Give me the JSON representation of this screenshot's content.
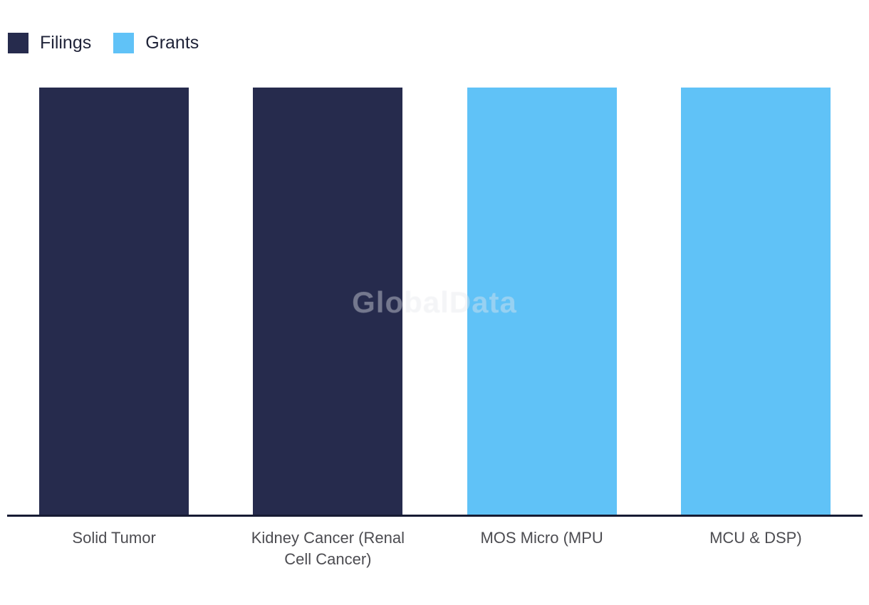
{
  "watermark": {
    "text": "GlobalData"
  },
  "colors": {
    "background": "#FFFFFF",
    "filings_bar": "#262B4D",
    "grants_bar": "#60C2F7",
    "axis_line": "#171B33",
    "axis_label_text": "#4C4C51",
    "legend_label_text": "#1F2338"
  },
  "legend": {
    "position": "top-left",
    "items": [
      {
        "label": "Filings",
        "color": "#262B4D"
      },
      {
        "label": "Grants",
        "color": "#60C2F7"
      }
    ]
  },
  "chart_data": {
    "type": "bar",
    "categories": [
      "Solid Tumor",
      "Kidney Cancer (Renal Cell Cancer)",
      "MOS Micro (MPU",
      "MCU & DSP)"
    ],
    "values": [
      1,
      1,
      1,
      1
    ],
    "bar_series": [
      "Filings",
      "Filings",
      "Grants",
      "Grants"
    ],
    "series": [
      {
        "name": "Filings",
        "color": "#262B4D"
      },
      {
        "name": "Grants",
        "color": "#60C2F7"
      }
    ],
    "title": "",
    "xlabel": "",
    "ylabel": "",
    "ylim": [
      0,
      1
    ],
    "y_axis_visible": false,
    "grid": false,
    "legend_position": "top-left",
    "bar_width_fraction": 0.7
  }
}
